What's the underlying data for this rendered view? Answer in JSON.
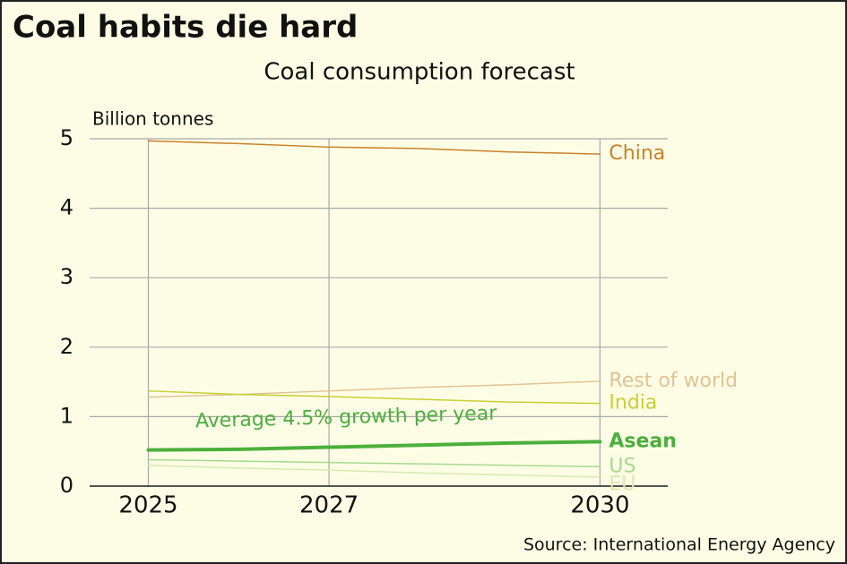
{
  "chart_data": {
    "type": "line",
    "title": "Coal habits die hard",
    "subtitle": "Coal consumption forecast",
    "y_label": "Billion tonnes",
    "annotation": "Average 4.5% growth per year",
    "source": "Source: International Energy Agency",
    "x": [
      2025,
      2026,
      2027,
      2028,
      2029,
      2030
    ],
    "xlim": [
      2024.35,
      2030.75
    ],
    "xticks": [
      2025,
      2027,
      2030
    ],
    "ylim": [
      0,
      5
    ],
    "yticks": [
      0,
      1,
      2,
      3,
      4,
      5
    ],
    "grid": true,
    "series": [
      {
        "name": "China",
        "color": "#c8822a",
        "stroke_width": 1.5,
        "values": [
          4.97,
          4.93,
          4.88,
          4.86,
          4.81,
          4.78
        ]
      },
      {
        "name": "Rest of world",
        "color": "#e2c393",
        "stroke_width": 1.5,
        "values": [
          1.28,
          1.32,
          1.37,
          1.42,
          1.46,
          1.51
        ]
      },
      {
        "name": "India",
        "color": "#c9cf33",
        "stroke_width": 1.5,
        "values": [
          1.37,
          1.32,
          1.29,
          1.25,
          1.21,
          1.19
        ]
      },
      {
        "name": "Asean",
        "color": "#4caf3c",
        "stroke_width": 4,
        "values": [
          0.52,
          0.53,
          0.56,
          0.59,
          0.62,
          0.64
        ]
      },
      {
        "name": "US",
        "color": "#a6da8e",
        "stroke_width": 1.5,
        "values": [
          0.38,
          0.36,
          0.34,
          0.32,
          0.3,
          0.28
        ]
      },
      {
        "name": "EU",
        "color": "#d6ebb0",
        "stroke_width": 1.5,
        "values": [
          0.3,
          0.26,
          0.23,
          0.19,
          0.16,
          0.13
        ]
      }
    ]
  }
}
